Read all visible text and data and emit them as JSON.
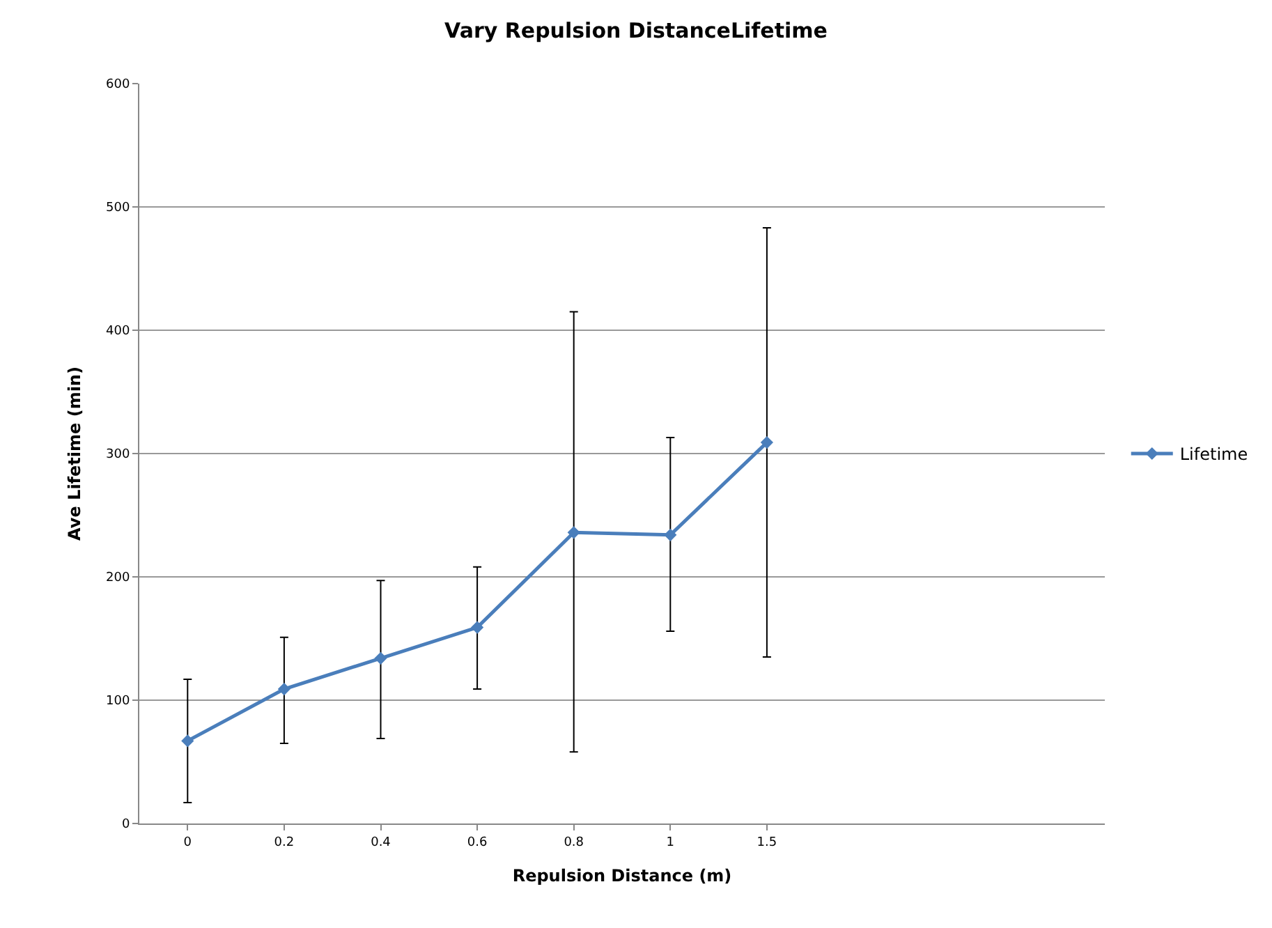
{
  "chart_data": {
    "type": "line",
    "title": "Vary Repulsion DistanceLifetime",
    "xlabel": "Repulsion Distance (m)",
    "ylabel": "Ave Lifetime (min)",
    "categories": [
      "0",
      "0.2",
      "0.4",
      "0.6",
      "0.8",
      "1",
      "1.5",
      null,
      null,
      null
    ],
    "series": [
      {
        "name": "Lifetime",
        "color": "#4a7ebb",
        "values": [
          67,
          109,
          134,
          159,
          236,
          234,
          309,
          null,
          null,
          null
        ],
        "errors": [
          [
            17,
            117
          ],
          [
            65,
            151
          ],
          [
            69,
            197
          ],
          [
            109,
            208
          ],
          [
            58,
            415
          ],
          [
            156,
            313
          ],
          [
            135,
            483
          ],
          null,
          null,
          null
        ]
      }
    ],
    "ylim": [
      0,
      600
    ],
    "yticks": [
      0,
      100,
      200,
      300,
      400,
      500,
      600
    ],
    "grid": "y",
    "legend": "right",
    "marker": "diamond",
    "line_style": "solid"
  }
}
